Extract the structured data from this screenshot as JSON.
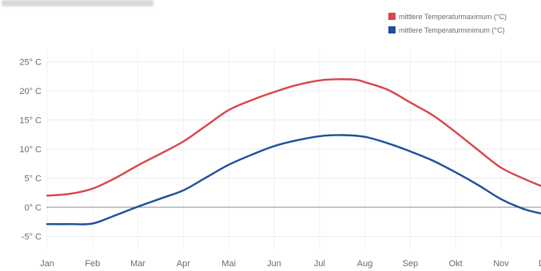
{
  "chart_data": {
    "type": "line",
    "title": "",
    "xlabel": "",
    "ylabel": "",
    "x": [
      "Jan",
      "Feb",
      "Mar",
      "Apr",
      "Mai",
      "Jun",
      "Jul",
      "Aug",
      "Sep",
      "Okt",
      "Nov",
      "Dez"
    ],
    "ylim": [
      -7,
      25
    ],
    "yticks": [
      "25° C",
      "20° C",
      "15° C",
      "10° C",
      "5° C",
      "0° C",
      "-5° C"
    ],
    "grid": true,
    "legend_position": "top-right",
    "series": [
      {
        "name": "mittlere Temperaturmaximum (°C)",
        "color": "#d9454a",
        "points": [
          [
            0,
            2
          ],
          [
            0.5,
            2.3
          ],
          [
            1,
            3.2
          ],
          [
            1.5,
            5
          ],
          [
            2,
            7.2
          ],
          [
            2.5,
            9.2
          ],
          [
            3,
            11.3
          ],
          [
            3.5,
            14
          ],
          [
            4,
            16.7
          ],
          [
            4.5,
            18.4
          ],
          [
            5,
            19.8
          ],
          [
            5.5,
            21
          ],
          [
            6,
            21.8
          ],
          [
            6.4,
            22
          ],
          [
            6.8,
            21.9
          ],
          [
            7,
            21.5
          ],
          [
            7.5,
            20.2
          ],
          [
            8,
            18
          ],
          [
            8.5,
            15.8
          ],
          [
            9,
            12.9
          ],
          [
            9.5,
            9.8
          ],
          [
            10,
            6.8
          ],
          [
            10.5,
            4.9
          ],
          [
            10.9,
            3.6
          ]
        ]
      },
      {
        "name": "mittlere Temperaturminimum (°C)",
        "color": "#1e4f9c",
        "points": [
          [
            0,
            -2.9
          ],
          [
            0.5,
            -2.9
          ],
          [
            1,
            -2.8
          ],
          [
            1.5,
            -1.4
          ],
          [
            2,
            0.1
          ],
          [
            2.5,
            1.5
          ],
          [
            3,
            2.9
          ],
          [
            3.5,
            5.1
          ],
          [
            4,
            7.3
          ],
          [
            4.5,
            9
          ],
          [
            5,
            10.5
          ],
          [
            5.5,
            11.5
          ],
          [
            6,
            12.2
          ],
          [
            6.5,
            12.4
          ],
          [
            7,
            12.1
          ],
          [
            7.5,
            11
          ],
          [
            8,
            9.6
          ],
          [
            8.5,
            8
          ],
          [
            9,
            6
          ],
          [
            9.5,
            3.8
          ],
          [
            10,
            1.4
          ],
          [
            10.5,
            -0.3
          ],
          [
            10.9,
            -1.1
          ]
        ]
      }
    ]
  }
}
